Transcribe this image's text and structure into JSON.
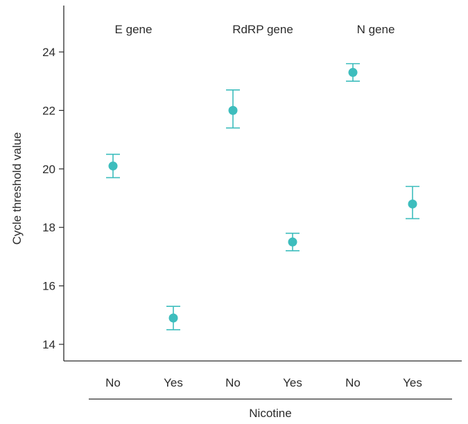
{
  "chart_data": {
    "type": "scatter",
    "ylabel": "Cycle threshold value",
    "xlabel": "Nicotine",
    "ylim": [
      13.3,
      25.5
    ],
    "yticks": [
      14,
      16,
      18,
      20,
      22,
      24
    ],
    "grid": false,
    "marker_color": "#3dbdbd",
    "groups": [
      "E gene",
      "RdRP gene",
      "N gene"
    ],
    "categories": [
      "No",
      "Yes",
      "No",
      "Yes",
      "No",
      "Yes"
    ],
    "points": [
      {
        "group": "E gene",
        "category": "No",
        "mean": 20.1,
        "lower": 19.7,
        "upper": 20.5
      },
      {
        "group": "E gene",
        "category": "Yes",
        "mean": 14.9,
        "lower": 14.5,
        "upper": 15.3
      },
      {
        "group": "RdRP gene",
        "category": "No",
        "mean": 22.0,
        "lower": 21.4,
        "upper": 22.7
      },
      {
        "group": "RdRP gene",
        "category": "Yes",
        "mean": 17.5,
        "lower": 17.2,
        "upper": 17.8
      },
      {
        "group": "N gene",
        "category": "No",
        "mean": 23.3,
        "lower": 23.0,
        "upper": 23.6
      },
      {
        "group": "N gene",
        "category": "Yes",
        "mean": 18.8,
        "lower": 18.3,
        "upper": 19.4
      }
    ]
  }
}
